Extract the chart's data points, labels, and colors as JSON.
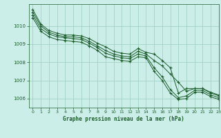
{
  "title": "Graphe pression niveau de la mer (hPa)",
  "background_color": "#cceee8",
  "grid_color": "#99ccbb",
  "line_color": "#1a5c2a",
  "xlim": [
    -0.5,
    23
  ],
  "ylim": [
    1005.5,
    1011.2
  ],
  "yticks": [
    1006,
    1007,
    1008,
    1009,
    1010
  ],
  "xticks": [
    0,
    1,
    2,
    3,
    4,
    5,
    6,
    7,
    8,
    9,
    10,
    11,
    12,
    13,
    14,
    15,
    16,
    17,
    18,
    19,
    20,
    21,
    22,
    23
  ],
  "series": [
    [
      1010.9,
      1010.1,
      1009.75,
      1009.6,
      1009.5,
      1009.5,
      1009.45,
      1009.3,
      1009.05,
      1008.85,
      1008.6,
      1008.5,
      1008.45,
      1008.75,
      1008.55,
      1008.45,
      1008.1,
      1007.7,
      1006.3,
      1006.55,
      1006.55,
      1006.55,
      1006.35,
      1006.2
    ],
    [
      1010.75,
      1010.0,
      1009.65,
      1009.5,
      1009.4,
      1009.4,
      1009.35,
      1009.15,
      1008.9,
      1008.65,
      1008.45,
      1008.35,
      1008.3,
      1008.6,
      1008.45,
      1008.1,
      1007.8,
      1007.35,
      1006.9,
      1006.4,
      1006.55,
      1006.55,
      1006.3,
      1006.15
    ],
    [
      1010.6,
      1009.85,
      1009.55,
      1009.4,
      1009.35,
      1009.3,
      1009.25,
      1009.05,
      1008.8,
      1008.5,
      1008.35,
      1008.25,
      1008.2,
      1008.45,
      1008.35,
      1007.7,
      1007.2,
      1006.5,
      1006.05,
      1006.15,
      1006.45,
      1006.45,
      1006.2,
      1006.05
    ],
    [
      1010.45,
      1009.7,
      1009.4,
      1009.25,
      1009.2,
      1009.15,
      1009.1,
      1008.9,
      1008.65,
      1008.3,
      1008.2,
      1008.1,
      1008.05,
      1008.3,
      1008.25,
      1007.5,
      1007.0,
      1006.3,
      1005.95,
      1006.0,
      1006.35,
      1006.35,
      1006.1,
      1005.95
    ]
  ]
}
